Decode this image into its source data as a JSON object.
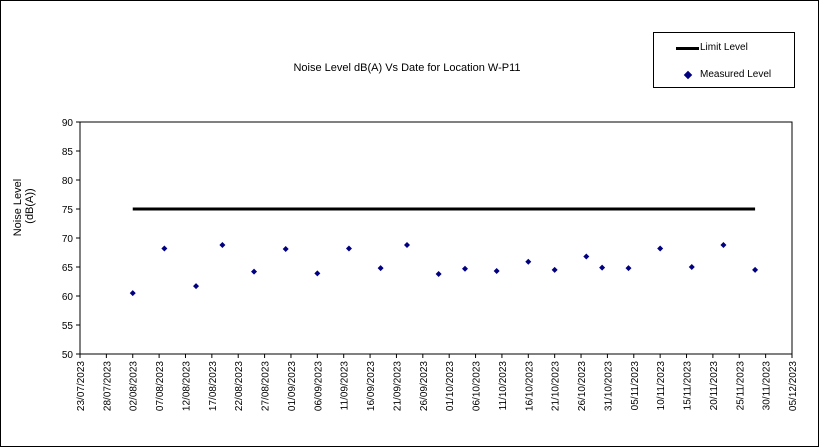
{
  "chart_data": {
    "type": "scatter",
    "title": "Noise Level dB(A) Vs Date for Location W-P11",
    "ylabel": [
      "Noise Level",
      "(dB(A))"
    ],
    "xlabel": "",
    "ylim": [
      50,
      90
    ],
    "yticks": [
      "50",
      "55",
      "60",
      "65",
      "70",
      "75",
      "80",
      "85",
      "90"
    ],
    "xlim": [
      "2023-07-23",
      "2023-12-05"
    ],
    "xticks": [
      "23/07/2023",
      "28/07/2023",
      "02/08/2023",
      "07/08/2023",
      "12/08/2023",
      "17/08/2023",
      "22/08/2023",
      "27/08/2023",
      "01/09/2023",
      "06/09/2023",
      "11/09/2023",
      "16/09/2023",
      "21/09/2023",
      "26/09/2023",
      "01/10/2023",
      "06/10/2023",
      "11/10/2023",
      "16/10/2023",
      "21/10/2023",
      "26/10/2023",
      "31/10/2023",
      "05/11/2023",
      "10/11/2023",
      "15/11/2023",
      "20/11/2023",
      "25/11/2023",
      "30/11/2023",
      "05/12/2023"
    ],
    "grid": false,
    "legend_position": "top-right",
    "series": [
      {
        "name": "Limit Level",
        "kind": "line",
        "color": "#000000",
        "x": [
          "2023-08-02",
          "2023-11-28"
        ],
        "y": [
          75,
          75
        ]
      },
      {
        "name": "Measured Level",
        "kind": "scatter",
        "color": "#000080",
        "x": [
          "2023-08-02",
          "2023-08-08",
          "2023-08-14",
          "2023-08-19",
          "2023-08-25",
          "2023-08-31",
          "2023-09-06",
          "2023-09-12",
          "2023-09-18",
          "2023-09-23",
          "2023-09-29",
          "2023-10-04",
          "2023-10-10",
          "2023-10-16",
          "2023-10-21",
          "2023-10-27",
          "2023-10-30",
          "2023-11-04",
          "2023-11-10",
          "2023-11-16",
          "2023-11-22",
          "2023-11-28"
        ],
        "y": [
          60.5,
          68.2,
          61.7,
          68.8,
          64.2,
          68.1,
          63.9,
          68.2,
          64.8,
          68.8,
          63.8,
          64.7,
          64.3,
          65.9,
          64.5,
          66.8,
          64.9,
          64.8,
          68.2,
          65.0,
          68.8,
          64.5
        ]
      }
    ]
  }
}
